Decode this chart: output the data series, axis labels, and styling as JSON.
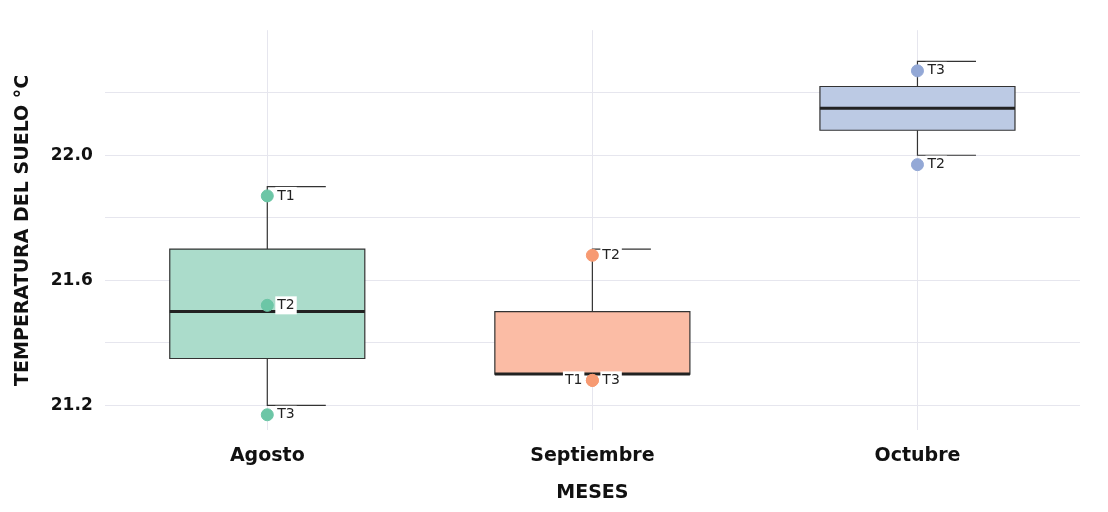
{
  "chart_data": {
    "type": "box",
    "xlabel": "MESES",
    "ylabel": "TEMPERATURA DEL SUELO °C",
    "categories": [
      "Agosto",
      "Septiembre",
      "Octubre"
    ],
    "boxes": [
      {
        "low": 21.2,
        "q1": 21.35,
        "median": 21.5,
        "q3": 21.7,
        "high": 21.9
      },
      {
        "low": 21.3,
        "q1": 21.3,
        "median": 21.3,
        "q3": 21.5,
        "high": 21.7
      },
      {
        "low": 22.0,
        "q1": 22.08,
        "median": 22.15,
        "q3": 22.22,
        "high": 22.3
      }
    ],
    "colors": [
      "#abdccb",
      "#fbbca5",
      "#bccae4"
    ],
    "series": [
      {
        "type": "scatter",
        "color": "#6cc6a6",
        "x": [
          "Agosto",
          "Agosto",
          "Agosto"
        ],
        "values": [
          21.87,
          21.52,
          21.17
        ]
      },
      {
        "type": "scatter",
        "color": "#f79a72",
        "x": [
          "Septiembre",
          "Septiembre",
          "Septiembre"
        ],
        "values": [
          21.68,
          21.28,
          21.28
        ]
      },
      {
        "type": "scatter",
        "color": "#93a8d6",
        "x": [
          "Octubre",
          "Octubre"
        ],
        "values": [
          22.27,
          21.97
        ]
      }
    ],
    "annotations": [
      {
        "text": "T1",
        "x": "Agosto",
        "y": 21.87
      },
      {
        "text": "T2",
        "x": "Agosto",
        "y": 21.52
      },
      {
        "text": "T3",
        "x": "Agosto",
        "y": 21.17
      },
      {
        "text": "T2",
        "x": "Septiembre",
        "y": 21.68
      },
      {
        "text": "T3",
        "x": "Septiembre",
        "y": 21.28
      },
      {
        "text": "T1",
        "x": "Septiembre",
        "y": 21.28
      },
      {
        "text": "T3",
        "x": "Octubre",
        "y": 22.27
      },
      {
        "text": "T2",
        "x": "Octubre",
        "y": 21.97
      }
    ],
    "ylim": [
      21.12,
      22.4
    ],
    "yticks": [
      21.2,
      {
        "value": 21.4,
        "label": null
      },
      21.6,
      {
        "value": 21.8,
        "label": null
      },
      {
        "value": 22.0,
        "label": "22.0"
      },
      {
        "value": 22.2,
        "label": null
      }
    ],
    "grid": true,
    "marker": "circle"
  }
}
